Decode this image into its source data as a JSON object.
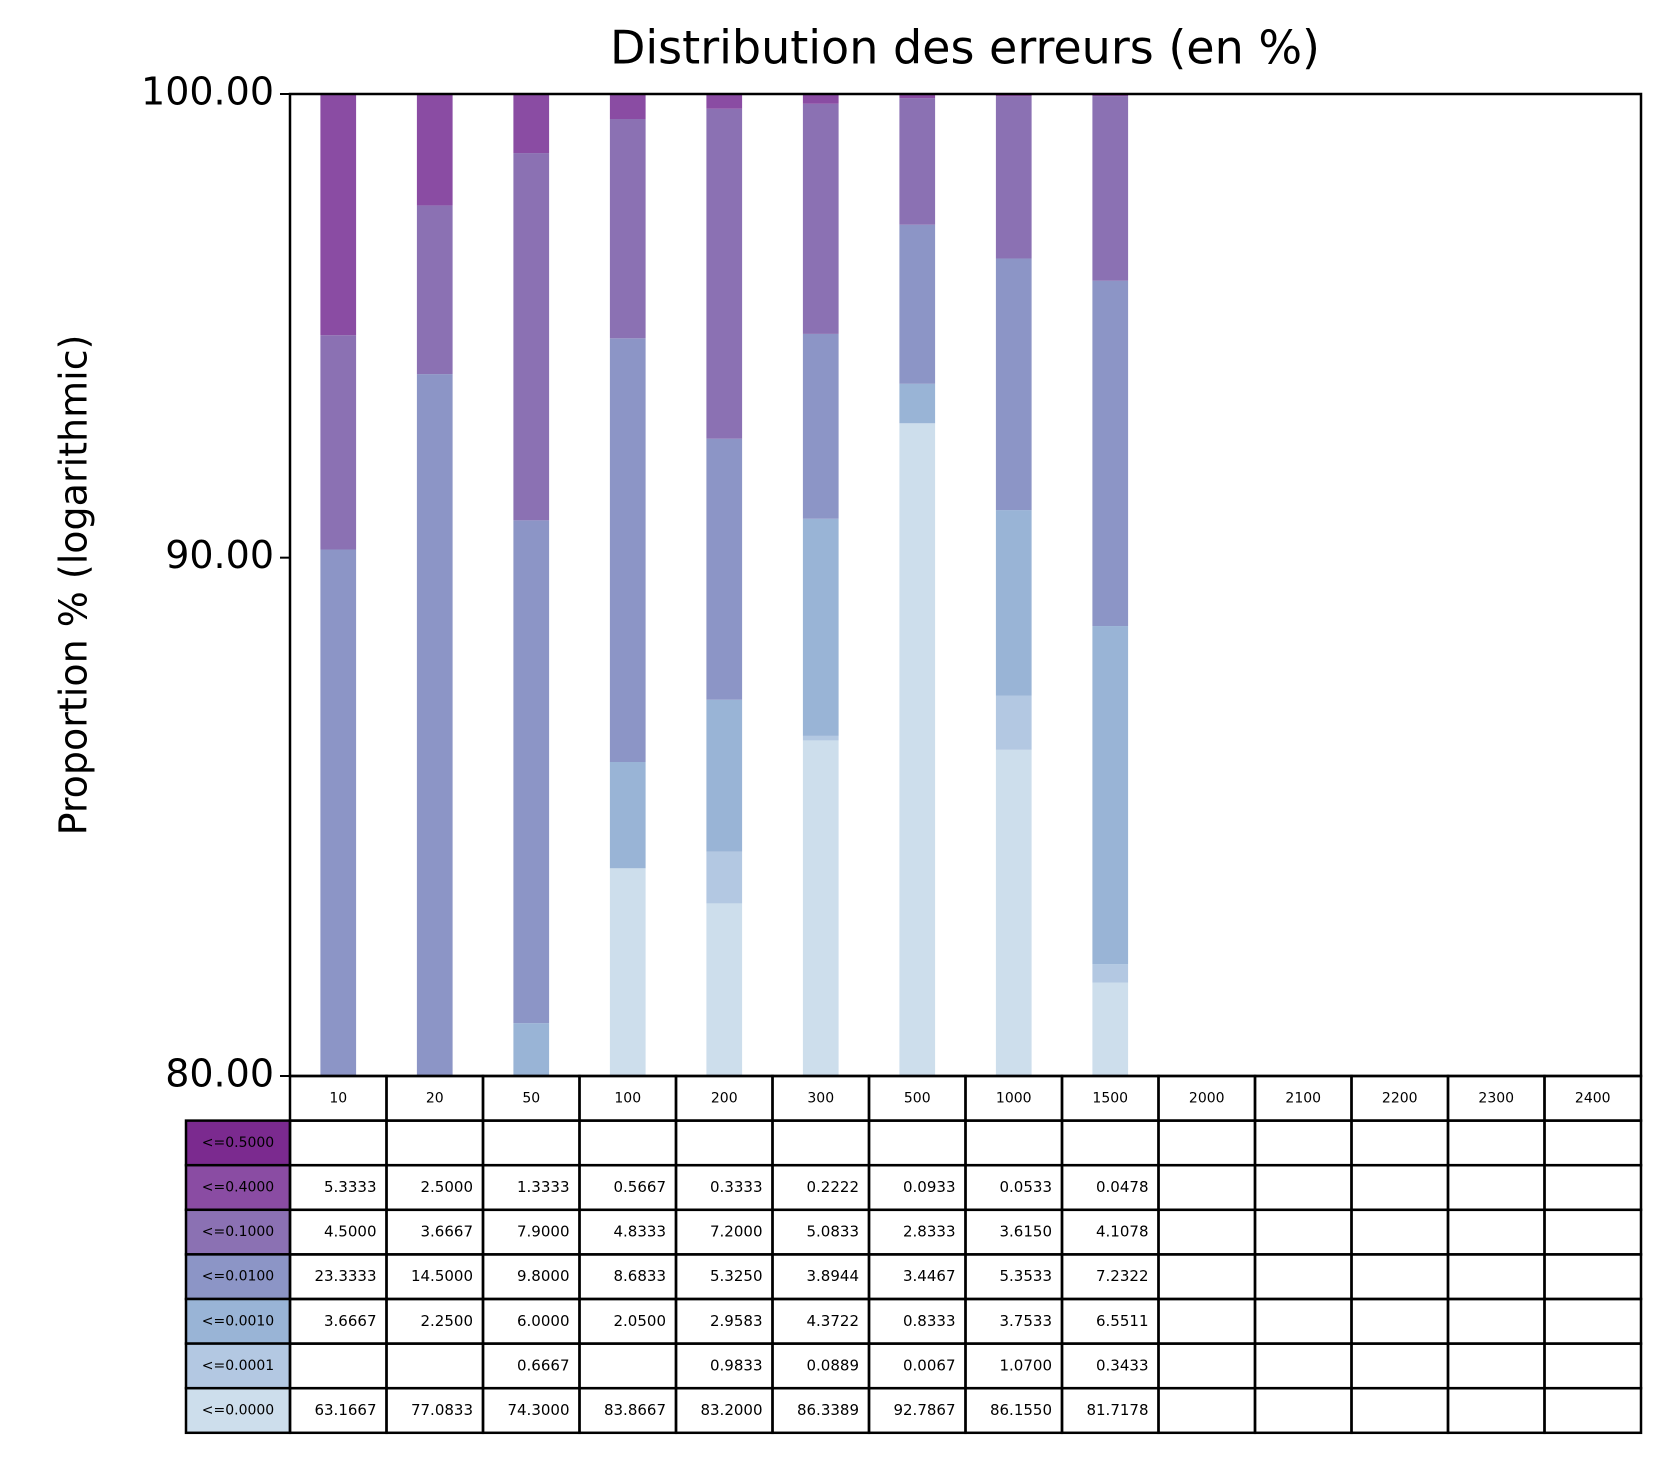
{
  "chart_data": {
    "type": "stacked_bar",
    "title": "Distribution des erreurs (en %)",
    "y_label": "Proportion % (logarithmic)",
    "yscale": "log",
    "ylim": [
      80,
      100
    ],
    "yticks": [
      {
        "value": 80,
        "label": "80.00"
      },
      {
        "value": 90,
        "label": "90.00"
      },
      {
        "value": 100,
        "label": "100.00"
      }
    ],
    "categories": [
      "10",
      "20",
      "50",
      "100",
      "200",
      "300",
      "500",
      "1000",
      "1500",
      "2000",
      "2100",
      "2200",
      "2300",
      "2400"
    ],
    "series": [
      {
        "name": "<=0.5000",
        "color": "#7b2a8f",
        "values": [
          null,
          null,
          null,
          null,
          null,
          null,
          null,
          null,
          null,
          null,
          null,
          null,
          null,
          null
        ],
        "value_labels": [
          null,
          null,
          null,
          null,
          null,
          null,
          null,
          null,
          null,
          null,
          null,
          null,
          null,
          null
        ]
      },
      {
        "name": "<=0.4000",
        "color": "#8a4ca3",
        "values": [
          5.3333,
          2.5,
          1.3333,
          0.5667,
          0.3333,
          0.2222,
          0.0933,
          0.0533,
          0.0478,
          null,
          null,
          null,
          null,
          null
        ],
        "value_labels": [
          "5.3333",
          "2.5000",
          "1.3333",
          "0.5667",
          "0.3333",
          "0.2222",
          "0.0933",
          "0.0533",
          "0.0478",
          null,
          null,
          null,
          null,
          null
        ]
      },
      {
        "name": "<=0.1000",
        "color": "#8b71b3",
        "values": [
          4.5,
          3.6667,
          7.9,
          4.8333,
          7.2,
          5.0833,
          2.8333,
          3.615,
          4.1078,
          null,
          null,
          null,
          null,
          null
        ],
        "value_labels": [
          "4.5000",
          "3.6667",
          "7.9000",
          "4.8333",
          "7.2000",
          "5.0833",
          "2.8333",
          "3.6150",
          "4.1078",
          null,
          null,
          null,
          null,
          null
        ]
      },
      {
        "name": "<=0.0100",
        "color": "#8c95c6",
        "values": [
          23.3333,
          14.5,
          9.8,
          8.6833,
          5.325,
          3.8944,
          3.4467,
          5.3533,
          7.2322,
          null,
          null,
          null,
          null,
          null
        ],
        "value_labels": [
          "23.3333",
          "14.5000",
          "9.8000",
          "8.6833",
          "5.3250",
          "3.8944",
          "3.4467",
          "5.3533",
          "7.2322",
          null,
          null,
          null,
          null,
          null
        ]
      },
      {
        "name": "<=0.0010",
        "color": "#99b4d6",
        "values": [
          3.6667,
          2.25,
          6.0,
          2.05,
          2.9583,
          4.3722,
          0.8333,
          3.7533,
          6.5511,
          null,
          null,
          null,
          null,
          null
        ],
        "value_labels": [
          "3.6667",
          "2.2500",
          "6.0000",
          "2.0500",
          "2.9583",
          "4.3722",
          "0.8333",
          "3.7533",
          "6.5511",
          null,
          null,
          null,
          null,
          null
        ]
      },
      {
        "name": "<=0.0001",
        "color": "#b3c8e2",
        "values": [
          null,
          null,
          0.6667,
          null,
          0.9833,
          0.0889,
          0.0067,
          1.07,
          0.3433,
          null,
          null,
          null,
          null,
          null
        ],
        "value_labels": [
          null,
          null,
          "0.6667",
          null,
          "0.9833",
          "0.0889",
          "0.0067",
          "1.0700",
          "0.3433",
          null,
          null,
          null,
          null,
          null
        ]
      },
      {
        "name": "<=0.0000",
        "color": "#cddeec",
        "values": [
          63.1667,
          77.0833,
          74.3,
          83.8667,
          83.2,
          86.3389,
          92.7867,
          86.155,
          81.7178,
          null,
          null,
          null,
          null,
          null
        ],
        "value_labels": [
          "63.1667",
          "77.0833",
          "74.3000",
          "83.8667",
          "83.2000",
          "86.3389",
          "92.7867",
          "86.1550",
          "81.7178",
          null,
          null,
          null,
          null,
          null
        ]
      }
    ]
  }
}
